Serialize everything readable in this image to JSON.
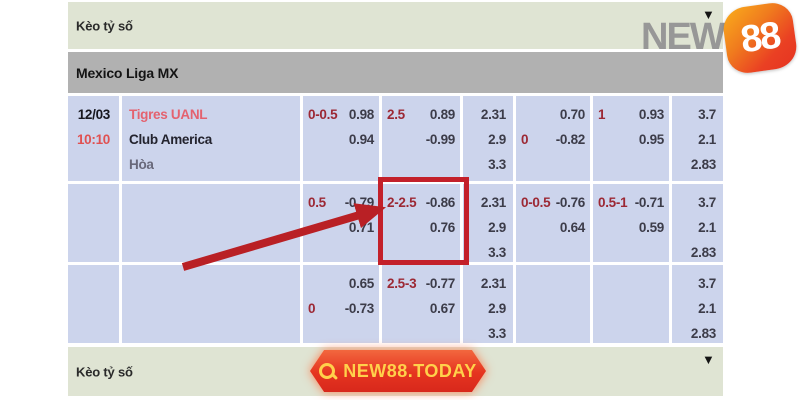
{
  "header": {
    "title": "Kèo tỷ số",
    "dropdown_icon": "▼"
  },
  "league": {
    "title": "Mexico Liga MX"
  },
  "logo": {
    "new_text": "NEW",
    "badge_text": "88"
  },
  "footer": {
    "title": "Kèo tỷ số",
    "dropdown_icon": "▼",
    "button_label": "NEW88.TODAY"
  },
  "table": {
    "columns": [
      "date-time",
      "teams",
      "handicap-1",
      "over-under-1",
      "1x2-1",
      "handicap-2",
      "over-under-2",
      "1x2-2"
    ],
    "rows": [
      {
        "date": "12/03",
        "time": "10:10",
        "teams": [
          "Tigres UANL",
          "Club America",
          "Hòa"
        ],
        "handicap1": [
          [
            "0-0.5",
            "0.98"
          ],
          [
            "",
            "0.94"
          ]
        ],
        "overunder1": [
          [
            "2.5",
            "0.89"
          ],
          [
            "",
            "-0.99"
          ]
        ],
        "odds1x2_1": [
          "2.31",
          "2.9",
          "3.3"
        ],
        "handicap2": [
          [
            "",
            "0.70"
          ],
          [
            "0",
            "-0.82"
          ]
        ],
        "overunder2": [
          [
            "1",
            "0.93"
          ],
          [
            "",
            "0.95"
          ]
        ],
        "odds1x2_2": [
          "3.7",
          "2.1",
          "2.83"
        ]
      },
      {
        "date": "",
        "time": "",
        "teams": [],
        "handicap1": [
          [
            "0.5",
            "-0.79"
          ],
          [
            "",
            "0.71"
          ]
        ],
        "overunder1": [
          [
            "2-2.5",
            "-0.86"
          ],
          [
            "",
            "0.76"
          ]
        ],
        "odds1x2_1": [
          "2.31",
          "2.9",
          "3.3"
        ],
        "handicap2": [
          [
            "0-0.5",
            "-0.76"
          ],
          [
            "",
            "0.64"
          ]
        ],
        "overunder2": [
          [
            "0.5-1",
            "-0.71"
          ],
          [
            "",
            "0.59"
          ]
        ],
        "odds1x2_2": [
          "3.7",
          "2.1",
          "2.83"
        ]
      },
      {
        "date": "",
        "time": "",
        "teams": [],
        "handicap1": [
          [
            "",
            "0.65"
          ],
          [
            "0",
            "-0.73"
          ]
        ],
        "overunder1": [
          [
            "2.5-3",
            "-0.77"
          ],
          [
            "",
            "0.67"
          ]
        ],
        "odds1x2_1": [
          "2.31",
          "2.9",
          "3.3"
        ],
        "handicap2": [],
        "overunder2": [],
        "odds1x2_2": [
          "3.7",
          "2.1",
          "2.83"
        ]
      }
    ]
  },
  "annotation": {
    "type": "red-box-and-arrow",
    "highlighted_value": "2-2.5  -0.86 / 0.76",
    "color": "#c3202a"
  },
  "colors": {
    "bar_bg": "#dfe4d3",
    "league_bg": "#b1b1b1",
    "cell_bg": "#ccd4ec",
    "label_red": "#9c2834",
    "value_dark": "#3c3c49",
    "team_red": "#e4626f",
    "time_red": "#e05152",
    "annotation_red": "#c3202a",
    "badge_orange": "#f07c1e",
    "button_gold": "#ffd14b"
  }
}
